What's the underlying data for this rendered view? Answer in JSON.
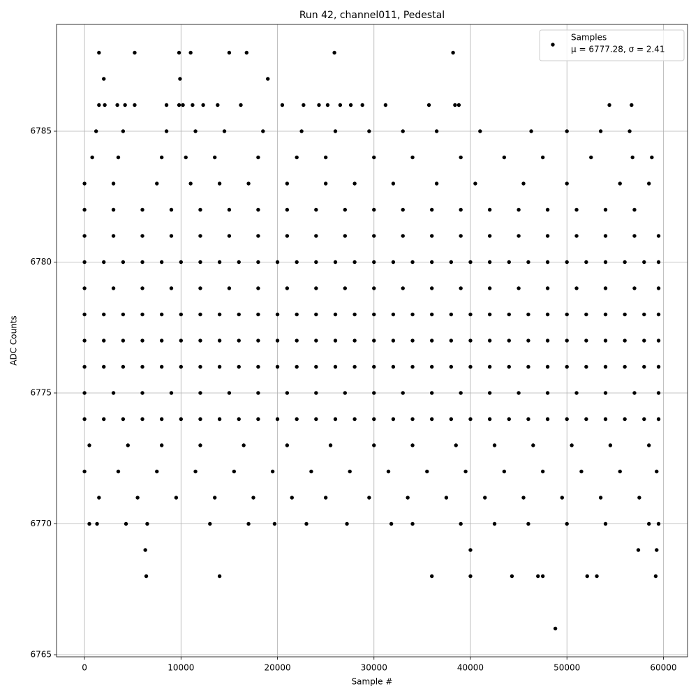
{
  "chart_data": {
    "type": "scatter",
    "title": "Run 42, channel011, Pedestal",
    "x_label": "Sample #",
    "y_label": "ADC Counts",
    "legend_note": "μ = 6777.28, σ = 2.41",
    "legend_position": "upper right",
    "grid": true,
    "xlim": [
      -2900,
      62500
    ],
    "ylim": [
      6764.92,
      6789.08
    ],
    "xticks": [
      0,
      10000,
      20000,
      30000,
      40000,
      50000,
      60000
    ],
    "yticks": [
      6765,
      6770,
      6775,
      6780,
      6785
    ],
    "x": [
      0,
      2000,
      4000,
      6000,
      8000,
      10000,
      12000,
      14000,
      16000,
      18000,
      20000,
      22000,
      24000,
      26000,
      28000,
      30000,
      32000,
      34000,
      36000,
      38000,
      40000,
      42000,
      44000,
      46000,
      48000,
      50000,
      52000,
      54000,
      56000,
      58000,
      59500,
      0,
      2000,
      4000,
      6000,
      8000,
      10000,
      12000,
      14000,
      16000,
      18000,
      20000,
      22000,
      24000,
      26000,
      28000,
      30000,
      32000,
      34000,
      36000,
      38000,
      40000,
      42000,
      44000,
      46000,
      48000,
      50000,
      52000,
      54000,
      56000,
      58000,
      59500,
      0,
      2000,
      4000,
      6000,
      8000,
      10000,
      12000,
      14000,
      16000,
      18000,
      20000,
      22000,
      24000,
      26000,
      28000,
      30000,
      32000,
      34000,
      36000,
      38000,
      40000,
      42000,
      44000,
      46000,
      48000,
      50000,
      52000,
      54000,
      56000,
      58000,
      59500,
      0,
      2000,
      4000,
      6000,
      8000,
      10000,
      12000,
      14000,
      16000,
      18000,
      20000,
      22000,
      24000,
      26000,
      28000,
      30000,
      32000,
      34000,
      36000,
      38000,
      40000,
      42000,
      44000,
      46000,
      48000,
      50000,
      52000,
      54000,
      56000,
      58000,
      59500,
      0,
      2000,
      4000,
      6000,
      8000,
      10000,
      12000,
      14000,
      16000,
      18000,
      20000,
      22000,
      24000,
      26000,
      28000,
      30000,
      32000,
      34000,
      36000,
      38000,
      40000,
      42000,
      44000,
      46000,
      48000,
      50000,
      52000,
      54000,
      56000,
      58000,
      59500,
      0,
      3000,
      6000,
      9000,
      12000,
      15000,
      18000,
      21000,
      24000,
      27000,
      30000,
      33000,
      36000,
      39000,
      42000,
      45000,
      48000,
      51000,
      54000,
      57000,
      59500,
      0,
      3000,
      6000,
      9000,
      12000,
      15000,
      18000,
      21000,
      24000,
      27000,
      30000,
      33000,
      36000,
      39000,
      42000,
      45000,
      48000,
      51000,
      54000,
      57000,
      59500,
      0,
      3000,
      6000,
      9000,
      12000,
      15000,
      18000,
      21000,
      24000,
      27000,
      30000,
      33000,
      36000,
      39000,
      42000,
      45000,
      48000,
      51000,
      54000,
      57000,
      59500,
      0,
      3000,
      6000,
      9000,
      12000,
      15000,
      18000,
      21000,
      24000,
      27000,
      30000,
      33000,
      36000,
      39000,
      42000,
      45000,
      48000,
      51000,
      54000,
      57000,
      500,
      4500,
      8000,
      12000,
      16500,
      21000,
      25500,
      30000,
      34000,
      38500,
      42500,
      46500,
      50500,
      54500,
      58500,
      0,
      3500,
      7500,
      11500,
      15500,
      19500,
      23500,
      27500,
      31500,
      35500,
      39500,
      43500,
      47500,
      51500,
      55500,
      59300,
      1500,
      5500,
      9500,
      13500,
      17500,
      21500,
      25000,
      29500,
      33500,
      37500,
      41500,
      45500,
      49500,
      53500,
      57500,
      500,
      1300,
      4300,
      6500,
      13000,
      17000,
      19700,
      23000,
      27200,
      31800,
      34000,
      39000,
      42500,
      46000,
      50000,
      54000,
      58500,
      59500,
      0,
      3000,
      7500,
      11000,
      14000,
      17000,
      21000,
      25000,
      28000,
      32000,
      36500,
      40500,
      45500,
      50000,
      55500,
      58500,
      800,
      3500,
      8000,
      10500,
      13500,
      18000,
      22000,
      25000,
      30000,
      34000,
      39000,
      43500,
      47500,
      52500,
      56800,
      58800,
      1200,
      4000,
      8500,
      11500,
      14500,
      18500,
      22500,
      26000,
      29500,
      33000,
      36500,
      41000,
      46300,
      50000,
      53500,
      56500,
      1500,
      2100,
      3400,
      4200,
      5200,
      8500,
      9800,
      10200,
      11200,
      12300,
      13800,
      16200,
      20500,
      22700,
      24300,
      25200,
      26500,
      27600,
      28800,
      31200,
      35700,
      38400,
      38800,
      54400,
      56700,
      2000,
      9900,
      19000,
      1500,
      5200,
      9800,
      11000,
      15000,
      16800,
      25900,
      38200,
      6300,
      40000,
      57400,
      59300,
      6400,
      14000,
      36000,
      40000,
      44300,
      47000,
      47500,
      52100,
      53100,
      59200,
      48800
    ],
    "series": [
      {
        "name": "Samples",
        "color": "#000000",
        "values": [
          6774,
          6774,
          6774,
          6774,
          6774,
          6774,
          6774,
          6774,
          6774,
          6774,
          6774,
          6774,
          6774,
          6774,
          6774,
          6774,
          6774,
          6774,
          6774,
          6774,
          6774,
          6774,
          6774,
          6774,
          6774,
          6774,
          6774,
          6774,
          6774,
          6774,
          6774,
          6776,
          6776,
          6776,
          6776,
          6776,
          6776,
          6776,
          6776,
          6776,
          6776,
          6776,
          6776,
          6776,
          6776,
          6776,
          6776,
          6776,
          6776,
          6776,
          6776,
          6776,
          6776,
          6776,
          6776,
          6776,
          6776,
          6776,
          6776,
          6776,
          6776,
          6776,
          6777,
          6777,
          6777,
          6777,
          6777,
          6777,
          6777,
          6777,
          6777,
          6777,
          6777,
          6777,
          6777,
          6777,
          6777,
          6777,
          6777,
          6777,
          6777,
          6777,
          6777,
          6777,
          6777,
          6777,
          6777,
          6777,
          6777,
          6777,
          6777,
          6777,
          6777,
          6778,
          6778,
          6778,
          6778,
          6778,
          6778,
          6778,
          6778,
          6778,
          6778,
          6778,
          6778,
          6778,
          6778,
          6778,
          6778,
          6778,
          6778,
          6778,
          6778,
          6778,
          6778,
          6778,
          6778,
          6778,
          6778,
          6778,
          6778,
          6778,
          6778,
          6778,
          6780,
          6780,
          6780,
          6780,
          6780,
          6780,
          6780,
          6780,
          6780,
          6780,
          6780,
          6780,
          6780,
          6780,
          6780,
          6780,
          6780,
          6780,
          6780,
          6780,
          6780,
          6780,
          6780,
          6780,
          6780,
          6780,
          6780,
          6780,
          6780,
          6780,
          6780,
          6775,
          6775,
          6775,
          6775,
          6775,
          6775,
          6775,
          6775,
          6775,
          6775,
          6775,
          6775,
          6775,
          6775,
          6775,
          6775,
          6775,
          6775,
          6775,
          6775,
          6775,
          6779,
          6779,
          6779,
          6779,
          6779,
          6779,
          6779,
          6779,
          6779,
          6779,
          6779,
          6779,
          6779,
          6779,
          6779,
          6779,
          6779,
          6779,
          6779,
          6779,
          6779,
          6781,
          6781,
          6781,
          6781,
          6781,
          6781,
          6781,
          6781,
          6781,
          6781,
          6781,
          6781,
          6781,
          6781,
          6781,
          6781,
          6781,
          6781,
          6781,
          6781,
          6781,
          6782,
          6782,
          6782,
          6782,
          6782,
          6782,
          6782,
          6782,
          6782,
          6782,
          6782,
          6782,
          6782,
          6782,
          6782,
          6782,
          6782,
          6782,
          6782,
          6782,
          6773,
          6773,
          6773,
          6773,
          6773,
          6773,
          6773,
          6773,
          6773,
          6773,
          6773,
          6773,
          6773,
          6773,
          6773,
          6772,
          6772,
          6772,
          6772,
          6772,
          6772,
          6772,
          6772,
          6772,
          6772,
          6772,
          6772,
          6772,
          6772,
          6772,
          6772,
          6771,
          6771,
          6771,
          6771,
          6771,
          6771,
          6771,
          6771,
          6771,
          6771,
          6771,
          6771,
          6771,
          6771,
          6771,
          6770,
          6770,
          6770,
          6770,
          6770,
          6770,
          6770,
          6770,
          6770,
          6770,
          6770,
          6770,
          6770,
          6770,
          6770,
          6770,
          6770,
          6770,
          6783,
          6783,
          6783,
          6783,
          6783,
          6783,
          6783,
          6783,
          6783,
          6783,
          6783,
          6783,
          6783,
          6783,
          6783,
          6783,
          6784,
          6784,
          6784,
          6784,
          6784,
          6784,
          6784,
          6784,
          6784,
          6784,
          6784,
          6784,
          6784,
          6784,
          6784,
          6784,
          6785,
          6785,
          6785,
          6785,
          6785,
          6785,
          6785,
          6785,
          6785,
          6785,
          6785,
          6785,
          6785,
          6785,
          6785,
          6785,
          6786,
          6786,
          6786,
          6786,
          6786,
          6786,
          6786,
          6786,
          6786,
          6786,
          6786,
          6786,
          6786,
          6786,
          6786,
          6786,
          6786,
          6786,
          6786,
          6786,
          6786,
          6786,
          6786,
          6786,
          6786,
          6787,
          6787,
          6787,
          6788,
          6788,
          6788,
          6788,
          6788,
          6788,
          6788,
          6788,
          6769,
          6769,
          6769,
          6769,
          6768,
          6768,
          6768,
          6768,
          6768,
          6768,
          6768,
          6768,
          6768,
          6768,
          6766
        ]
      }
    ]
  }
}
